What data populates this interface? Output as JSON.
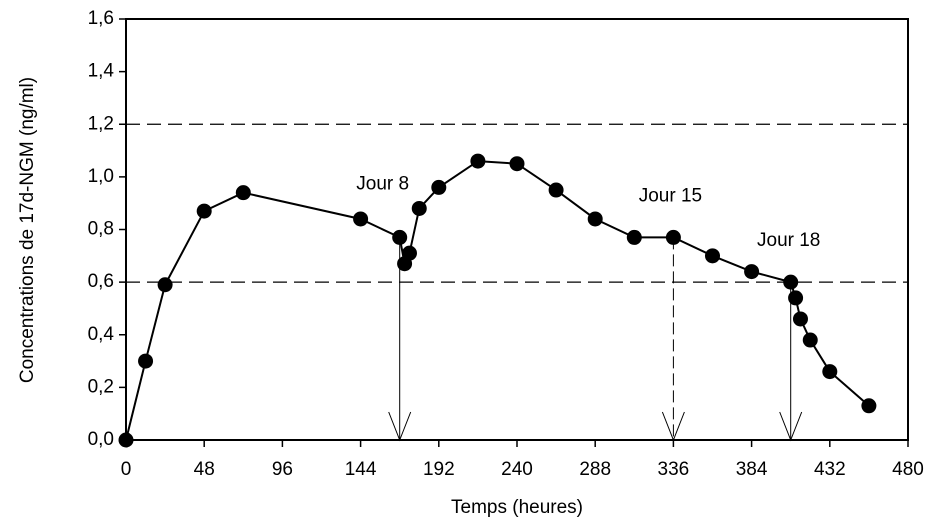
{
  "chart_data": {
    "type": "line",
    "xlabel": "Temps (heures)",
    "ylabel": "Concentrations de 17d-NGM (ng/ml)",
    "x": [
      0,
      12,
      24,
      48,
      72,
      144,
      168,
      171,
      174,
      180,
      192,
      216,
      240,
      264,
      288,
      312,
      336,
      360,
      384,
      408,
      411,
      414,
      420,
      432,
      456
    ],
    "values": [
      0,
      0.3,
      0.59,
      0.87,
      0.94,
      0.84,
      0.77,
      0.67,
      0.71,
      0.88,
      0.96,
      1.06,
      1.05,
      0.95,
      0.84,
      0.77,
      0.77,
      0.7,
      0.64,
      0.6,
      0.54,
      0.46,
      0.38,
      0.26,
      0.13
    ],
    "color": "#000000",
    "xlim": [
      0,
      480
    ],
    "xticks": [
      0,
      48,
      96,
      144,
      192,
      240,
      288,
      336,
      384,
      432,
      480
    ],
    "ylim": [
      0,
      1.6
    ],
    "yticks": [
      {
        "value": 0,
        "label": "0,0"
      },
      {
        "value": 0.2,
        "label": "0,2"
      },
      {
        "value": 0.4,
        "label": "0,4"
      },
      {
        "value": 0.6,
        "label": "0,6"
      },
      {
        "value": 0.8,
        "label": "0,8"
      },
      {
        "value": 1.0,
        "label": "1,0"
      },
      {
        "value": 1.2,
        "label": "1,2"
      },
      {
        "value": 1.4,
        "label": "1,4"
      },
      {
        "value": 1.6,
        "label": "1,6"
      }
    ],
    "reference_lines": [
      1.2,
      0.6
    ],
    "annotations": [
      {
        "text": "Jour 8",
        "x": 168,
        "y": 0.77,
        "dashed": false
      },
      {
        "text": "Jour 15",
        "x": 336,
        "y": 0.77,
        "dashed": true
      },
      {
        "text": "Jour 18",
        "x": 408,
        "y": 0.6,
        "dashed": false
      }
    ]
  }
}
